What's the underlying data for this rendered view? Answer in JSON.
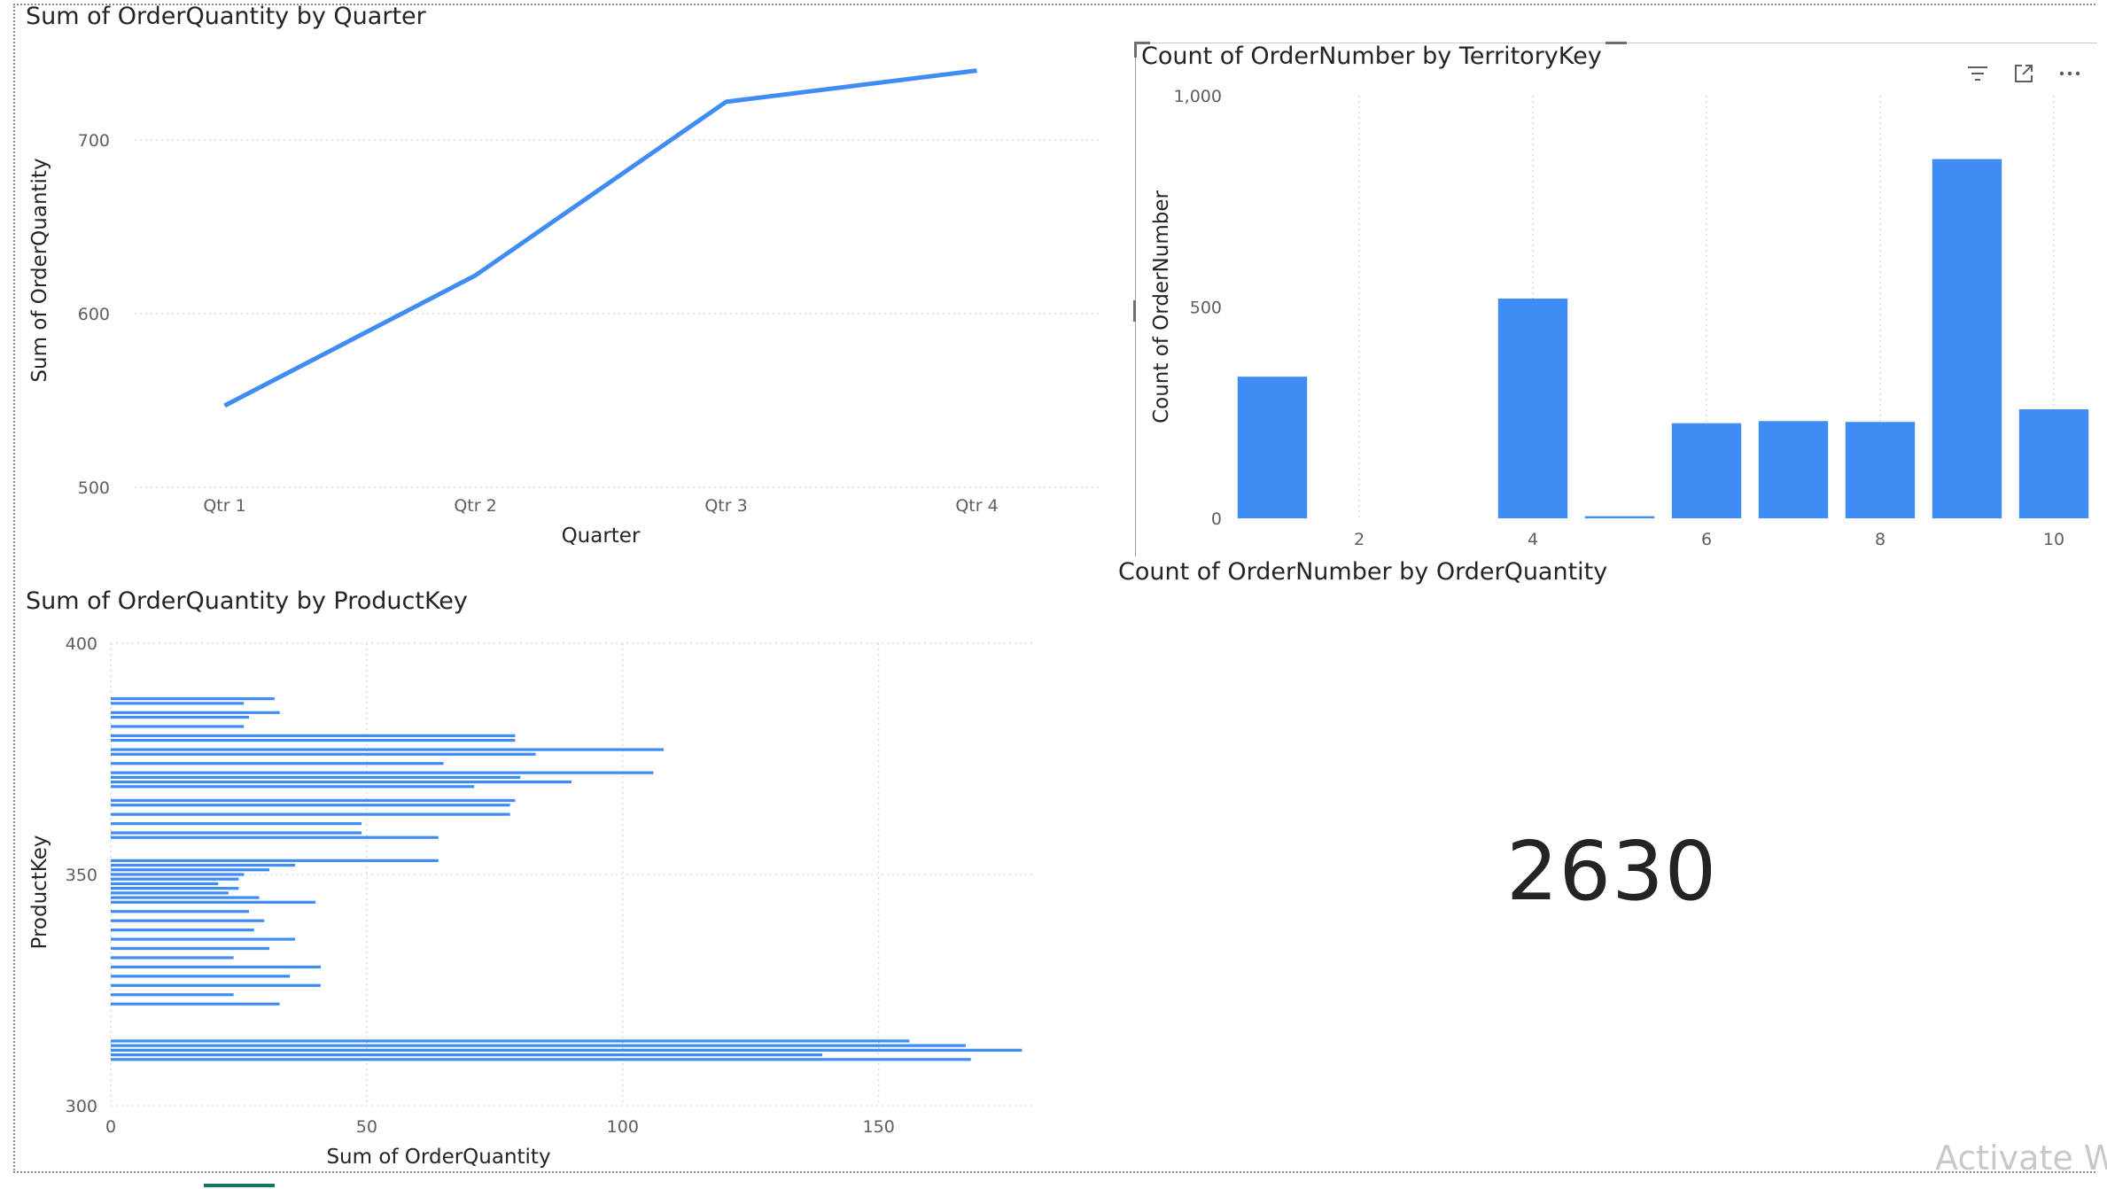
{
  "colors": {
    "series": "#3f8cf4",
    "text": "#252423",
    "tick": "#605e5c"
  },
  "line_visual": {
    "title": "Sum of OrderQuantity by Quarter",
    "chart_data": {
      "type": "line",
      "title": "Sum of OrderQuantity by Quarter",
      "xlabel": "Quarter",
      "ylabel": "Sum of OrderQuantity",
      "categories": [
        "Qtr 1",
        "Qtr 2",
        "Qtr 3",
        "Qtr 4"
      ],
      "values": [
        547,
        622,
        722,
        740
      ],
      "ylim": [
        500,
        750
      ],
      "yticks": [
        "500",
        "600",
        "700"
      ],
      "grid": true
    }
  },
  "territory_visual": {
    "title": "Count of OrderNumber by TerritoryKey",
    "chart_data": {
      "type": "bar",
      "title": "Count of OrderNumber by TerritoryKey",
      "xlabel": "",
      "ylabel": "Count of OrderNumber",
      "x": [
        1,
        2,
        3,
        4,
        5,
        6,
        7,
        8,
        9,
        10
      ],
      "values": [
        335,
        0,
        0,
        520,
        5,
        225,
        230,
        228,
        850,
        258
      ],
      "xticks": [
        "2",
        "4",
        "6",
        "8",
        "10"
      ],
      "yticks": [
        "0",
        "500",
        "1,000"
      ],
      "ylim": [
        0,
        1000
      ],
      "grid": true
    },
    "header_icons": [
      "filter-icon",
      "focus-mode-icon",
      "more-options-icon"
    ]
  },
  "quantity_visual": {
    "title": "Count of OrderNumber by OrderQuantity"
  },
  "product_visual": {
    "title": "Sum of OrderQuantity by ProductKey",
    "chart_data": {
      "type": "bar",
      "orientation": "horizontal",
      "title": "Sum of OrderQuantity by ProductKey",
      "xlabel": "Sum of OrderQuantity",
      "ylabel": "ProductKey",
      "xlim": [
        0,
        180
      ],
      "ylim": [
        300,
        400
      ],
      "xticks": [
        "0",
        "50",
        "100",
        "150"
      ],
      "yticks": [
        "300",
        "350",
        "400"
      ],
      "grid": true,
      "keys": [
        310,
        311,
        312,
        313,
        314,
        322,
        324,
        326,
        328,
        330,
        332,
        334,
        336,
        338,
        340,
        342,
        344,
        345,
        346,
        347,
        348,
        349,
        350,
        351,
        352,
        353,
        358,
        359,
        361,
        363,
        365,
        366,
        369,
        370,
        371,
        372,
        374,
        376,
        377,
        379,
        380,
        382,
        384,
        385,
        387,
        388
      ],
      "values": [
        168,
        139,
        178,
        167,
        156,
        33,
        24,
        41,
        35,
        41,
        24,
        31,
        36,
        28,
        30,
        27,
        40,
        29,
        23,
        25,
        21,
        25,
        26,
        31,
        36,
        64,
        64,
        49,
        49,
        78,
        78,
        79,
        71,
        90,
        80,
        106,
        65,
        83,
        108,
        79,
        79,
        26,
        27,
        33,
        26,
        32
      ]
    }
  },
  "card_visual": {
    "value": "2630"
  },
  "watermark": "Activate Wi"
}
